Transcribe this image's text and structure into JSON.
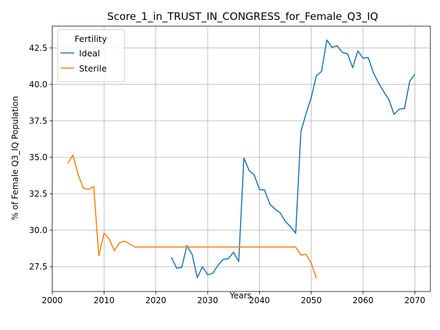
{
  "chart_data": {
    "type": "line",
    "title": "Score_1_in_TRUST_IN_CONGRESS_for_Female_Q3_IQ",
    "xlabel": "Years",
    "ylabel": "% of Female Q3_IQ Population",
    "xlim": [
      2000,
      2073
    ],
    "ylim": [
      25.8,
      44.0
    ],
    "xticks": [
      2000,
      2010,
      2020,
      2030,
      2040,
      2050,
      2060,
      2070
    ],
    "yticks": [
      27.5,
      30.0,
      32.5,
      35.0,
      37.5,
      40.0,
      42.5
    ],
    "xtick_labels": [
      "2000",
      "2010",
      "2020",
      "2030",
      "2040",
      "2050",
      "2060",
      "2070"
    ],
    "ytick_labels": [
      "27.5",
      "30.0",
      "32.5",
      "35.0",
      "37.5",
      "40.0",
      "42.5"
    ],
    "grid": true,
    "legend": {
      "title": "Fertility",
      "placement": "top-left"
    },
    "series": [
      {
        "name": "Ideal",
        "color": "#1f77b4",
        "x": [
          2023,
          2024,
          2025,
          2026,
          2027,
          2028,
          2029,
          2030,
          2031,
          2032,
          2033,
          2034,
          2035,
          2036,
          2037,
          2038,
          2039,
          2040,
          2041,
          2042,
          2043,
          2044,
          2045,
          2046,
          2047,
          2048,
          2049,
          2050,
          2051,
          2052,
          2053,
          2054,
          2055,
          2056,
          2057,
          2058,
          2059,
          2060,
          2061,
          2062,
          2063,
          2064,
          2065,
          2066,
          2067,
          2068,
          2069,
          2070
        ],
        "y": [
          28.15,
          27.4,
          27.45,
          28.95,
          28.35,
          26.75,
          27.5,
          26.95,
          27.05,
          27.6,
          28.0,
          28.05,
          28.5,
          27.85,
          34.95,
          34.1,
          33.8,
          32.8,
          32.75,
          31.8,
          31.45,
          31.2,
          30.6,
          30.25,
          29.8,
          36.75,
          38.0,
          39.1,
          40.6,
          40.9,
          43.05,
          42.55,
          42.65,
          42.2,
          42.1,
          41.15,
          42.3,
          41.8,
          41.85,
          40.8,
          40.1,
          39.5,
          38.95,
          37.95,
          38.3,
          38.35,
          40.2,
          40.7
        ]
      },
      {
        "name": "Sterile",
        "color": "#ff7f0e",
        "x": [
          2003,
          2004,
          2005,
          2006,
          2007,
          2008,
          2009,
          2010,
          2011,
          2012,
          2013,
          2014,
          2015,
          2016,
          2017,
          2018,
          2019,
          2020,
          2021,
          2022,
          2023,
          2024,
          2025,
          2026,
          2027,
          2028,
          2029,
          2030,
          2031,
          2032,
          2033,
          2034,
          2035,
          2036,
          2037,
          2038,
          2039,
          2040,
          2041,
          2042,
          2043,
          2044,
          2045,
          2046,
          2047,
          2048,
          2049,
          2050,
          2051
        ],
        "y": [
          34.6,
          35.15,
          33.8,
          32.9,
          32.8,
          33.0,
          28.25,
          29.8,
          29.4,
          28.6,
          29.15,
          29.25,
          29.05,
          28.85,
          28.85,
          28.85,
          28.85,
          28.85,
          28.85,
          28.85,
          28.85,
          28.85,
          28.85,
          28.85,
          28.85,
          28.85,
          28.85,
          28.85,
          28.85,
          28.85,
          28.85,
          28.85,
          28.85,
          28.85,
          28.85,
          28.85,
          28.85,
          28.85,
          28.85,
          28.85,
          28.85,
          28.85,
          28.85,
          28.85,
          28.85,
          28.3,
          28.35,
          27.75,
          26.7
        ]
      }
    ]
  }
}
